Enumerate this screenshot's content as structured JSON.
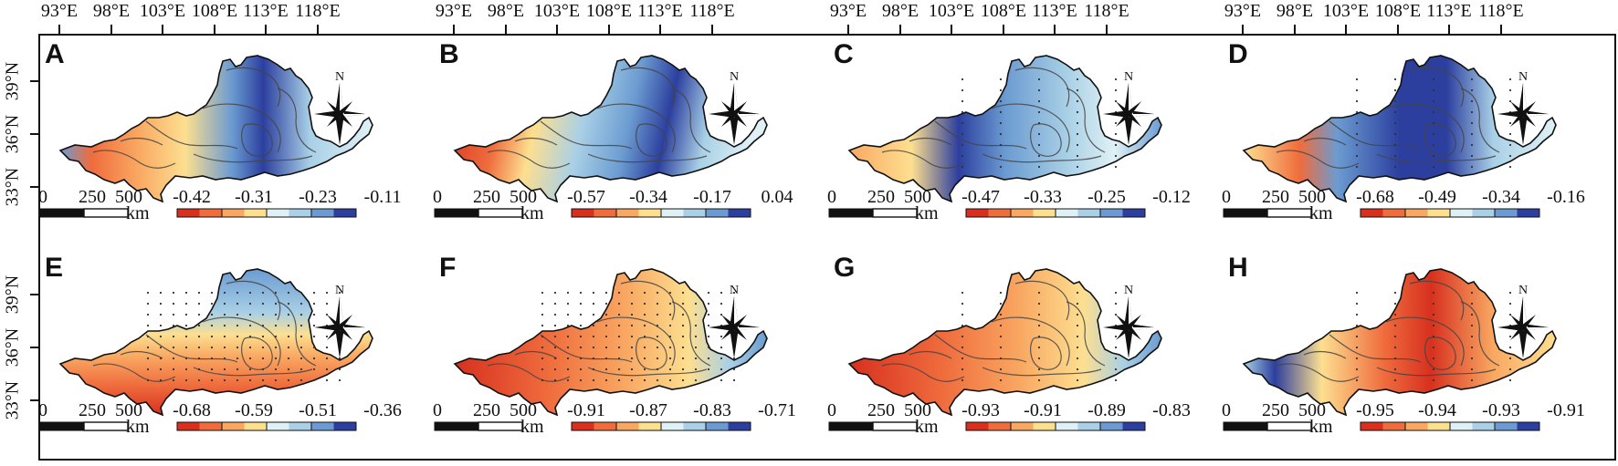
{
  "axes": {
    "longitude_labels": [
      "93°E",
      "98°E",
      "103°E",
      "108°E",
      "113°E",
      "118°E"
    ],
    "latitude_labels": [
      "39°N",
      "36°N",
      "33°N"
    ]
  },
  "scale_bar": {
    "ticks": [
      "0",
      "250",
      "500"
    ],
    "unit": "km"
  },
  "compass_label": "N",
  "legend_colors": [
    "#d7301f",
    "#ef6c3d",
    "#f9a862",
    "#fddf90",
    "#e0f1f5",
    "#a9d0e6",
    "#6b9bd1",
    "#2c3f9e"
  ],
  "panels": [
    {
      "label": "A",
      "legend_values": [
        "-0.42",
        "-0.31",
        "-0.23",
        "-0.11"
      ],
      "scheme": "A"
    },
    {
      "label": "B",
      "legend_values": [
        "-0.57",
        "-0.34",
        "-0.17",
        "0.04"
      ],
      "scheme": "B"
    },
    {
      "label": "C",
      "legend_values": [
        "-0.47",
        "-0.33",
        "-0.25",
        "-0.12"
      ],
      "scheme": "C"
    },
    {
      "label": "D",
      "legend_values": [
        "-0.68",
        "-0.49",
        "-0.34",
        "-0.16"
      ],
      "scheme": "D"
    },
    {
      "label": "E",
      "legend_values": [
        "-0.68",
        "-0.59",
        "-0.51",
        "-0.36"
      ],
      "scheme": "E"
    },
    {
      "label": "F",
      "legend_values": [
        "-0.91",
        "-0.87",
        "-0.83",
        "-0.71"
      ],
      "scheme": "F"
    },
    {
      "label": "G",
      "legend_values": [
        "-0.93",
        "-0.91",
        "-0.89",
        "-0.83"
      ],
      "scheme": "G"
    },
    {
      "label": "H",
      "legend_values": [
        "-0.95",
        "-0.94",
        "-0.93",
        "-0.91"
      ],
      "scheme": "H"
    }
  ]
}
